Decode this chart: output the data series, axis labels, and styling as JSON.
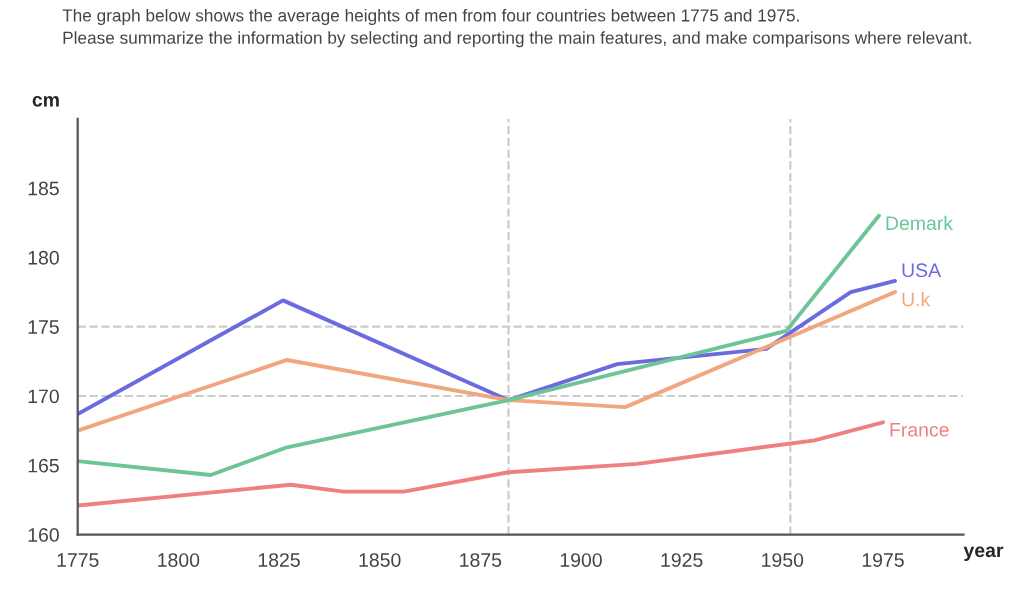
{
  "chart_data": {
    "type": "line",
    "title": "The graph below shows the average heights of men from four countries between 1775 and 1975.\nPlease summarize the information by selecting and reporting the main features, and make comparisons where relevant.",
    "xlabel": "year",
    "ylabel": "cm",
    "xlim": [
      1775,
      1995
    ],
    "xticks": [
      1775,
      1800,
      1825,
      1850,
      1875,
      1900,
      1925,
      1950,
      1975
    ],
    "ylim": [
      160,
      190
    ],
    "yticks": [
      160,
      165,
      170,
      175,
      180,
      185
    ],
    "grid": false,
    "legend": false,
    "line_style": "solid",
    "marker": "none",
    "ref_lines": [
      {
        "axis": "y",
        "value": 175,
        "color": "#cccccc",
        "line_style": "dashed"
      },
      {
        "axis": "y",
        "value": 170,
        "color": "#cccccc",
        "line_style": "dashed"
      },
      {
        "axis": "x",
        "value": 1882,
        "color": "#cccccc",
        "line_style": "dashed"
      },
      {
        "axis": "x",
        "value": 1952,
        "color": "#cccccc",
        "line_style": "dashed"
      }
    ],
    "series": [
      {
        "name": "USA",
        "color": "#6b6be0",
        "x": [
          1775,
          1826,
          1882,
          1909,
          1946,
          1967,
          1978
        ],
        "values": [
          168.7,
          176.9,
          169.7,
          172.3,
          173.4,
          177.5,
          178.3
        ]
      },
      {
        "name": "U.k",
        "color": "#f0a77f",
        "x": [
          1775,
          1827,
          1882,
          1911,
          1978
        ],
        "values": [
          167.5,
          172.6,
          169.7,
          169.2,
          177.5
        ]
      },
      {
        "name": "Demark",
        "color": "#6cc497",
        "x": [
          1775,
          1808,
          1827,
          1882,
          1951,
          1974
        ],
        "values": [
          165.3,
          164.3,
          166.3,
          169.7,
          174.7,
          183.0
        ]
      },
      {
        "name": "France",
        "color": "#f08080",
        "x": [
          1775,
          1828,
          1841,
          1856,
          1882,
          1914,
          1958,
          1975
        ],
        "values": [
          162.1,
          163.6,
          163.1,
          163.1,
          164.5,
          165.1,
          166.8,
          168.1
        ]
      }
    ]
  }
}
